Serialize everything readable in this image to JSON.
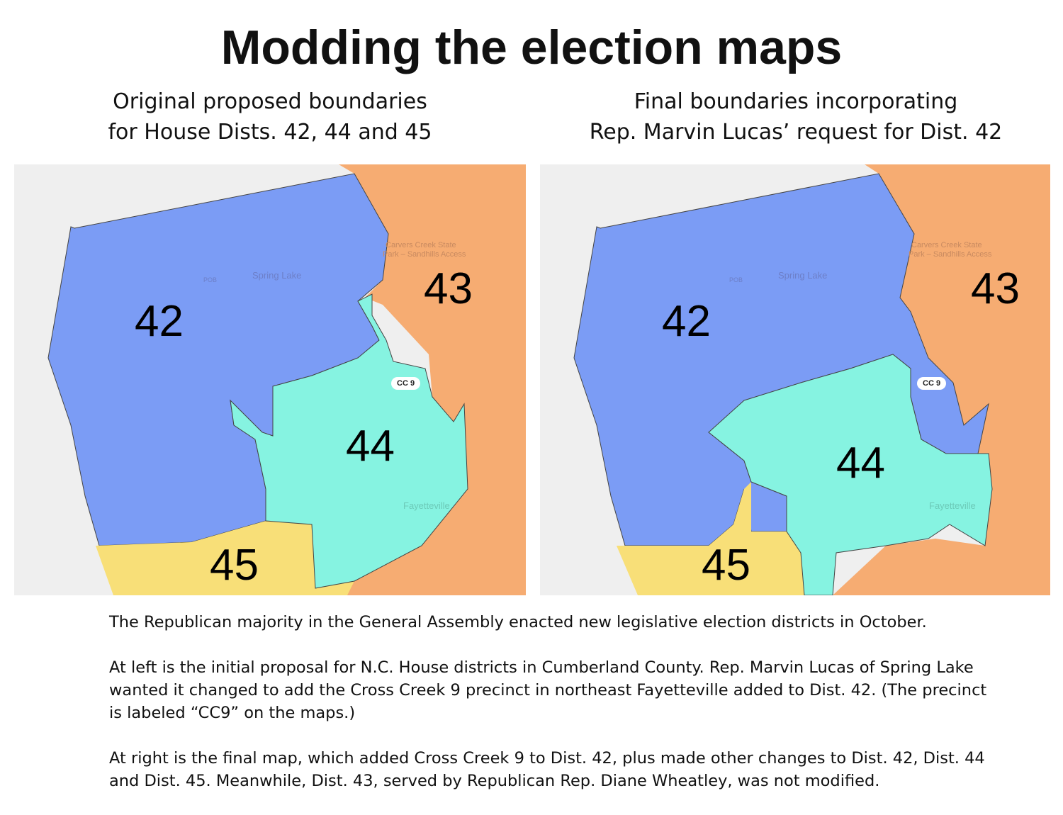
{
  "title": "Modding the election maps",
  "left": {
    "subtitle_line1": "Original proposed boundaries",
    "subtitle_line2": "for House Dists. 42, 44 and 45"
  },
  "right": {
    "subtitle_line1": "Final boundaries incorporating",
    "subtitle_line2": "Rep. Marvin Lucas’ request for Dist. 42"
  },
  "districts": {
    "d42": "42",
    "d43": "43",
    "d44": "44",
    "d45": "45"
  },
  "map_labels": {
    "park": "Carvers Creek State",
    "park2": "Park – Sandhills Access",
    "spring_lake": "Spring Lake",
    "airport": "POB",
    "precinct": "CC 9",
    "city": "Fayetteville"
  },
  "colors": {
    "d42": "#7b9cf5",
    "d43": "#f6ac72",
    "d44": "#86f3e1",
    "d45": "#f8df78",
    "background": "#efefef"
  },
  "notes": [
    "The Republican majority in the General Assembly enacted new legislative election districts in October.",
    "At left is the initial proposal for N.C. House districts in Cumberland County. Rep. Marvin Lucas of Spring Lake wanted it changed to add the Cross Creek 9 precinct in northeast Fayetteville added to Dist. 42. (The precinct is labeled “CC9” on the maps.)",
    "At right is the final map, which added Cross Creek 9 to Dist. 42, plus made other changes to Dist. 42, Dist. 44 and Dist. 45. Meanwhile, Dist. 43, served by Republican Rep. Diane Wheatley, was not modified."
  ]
}
